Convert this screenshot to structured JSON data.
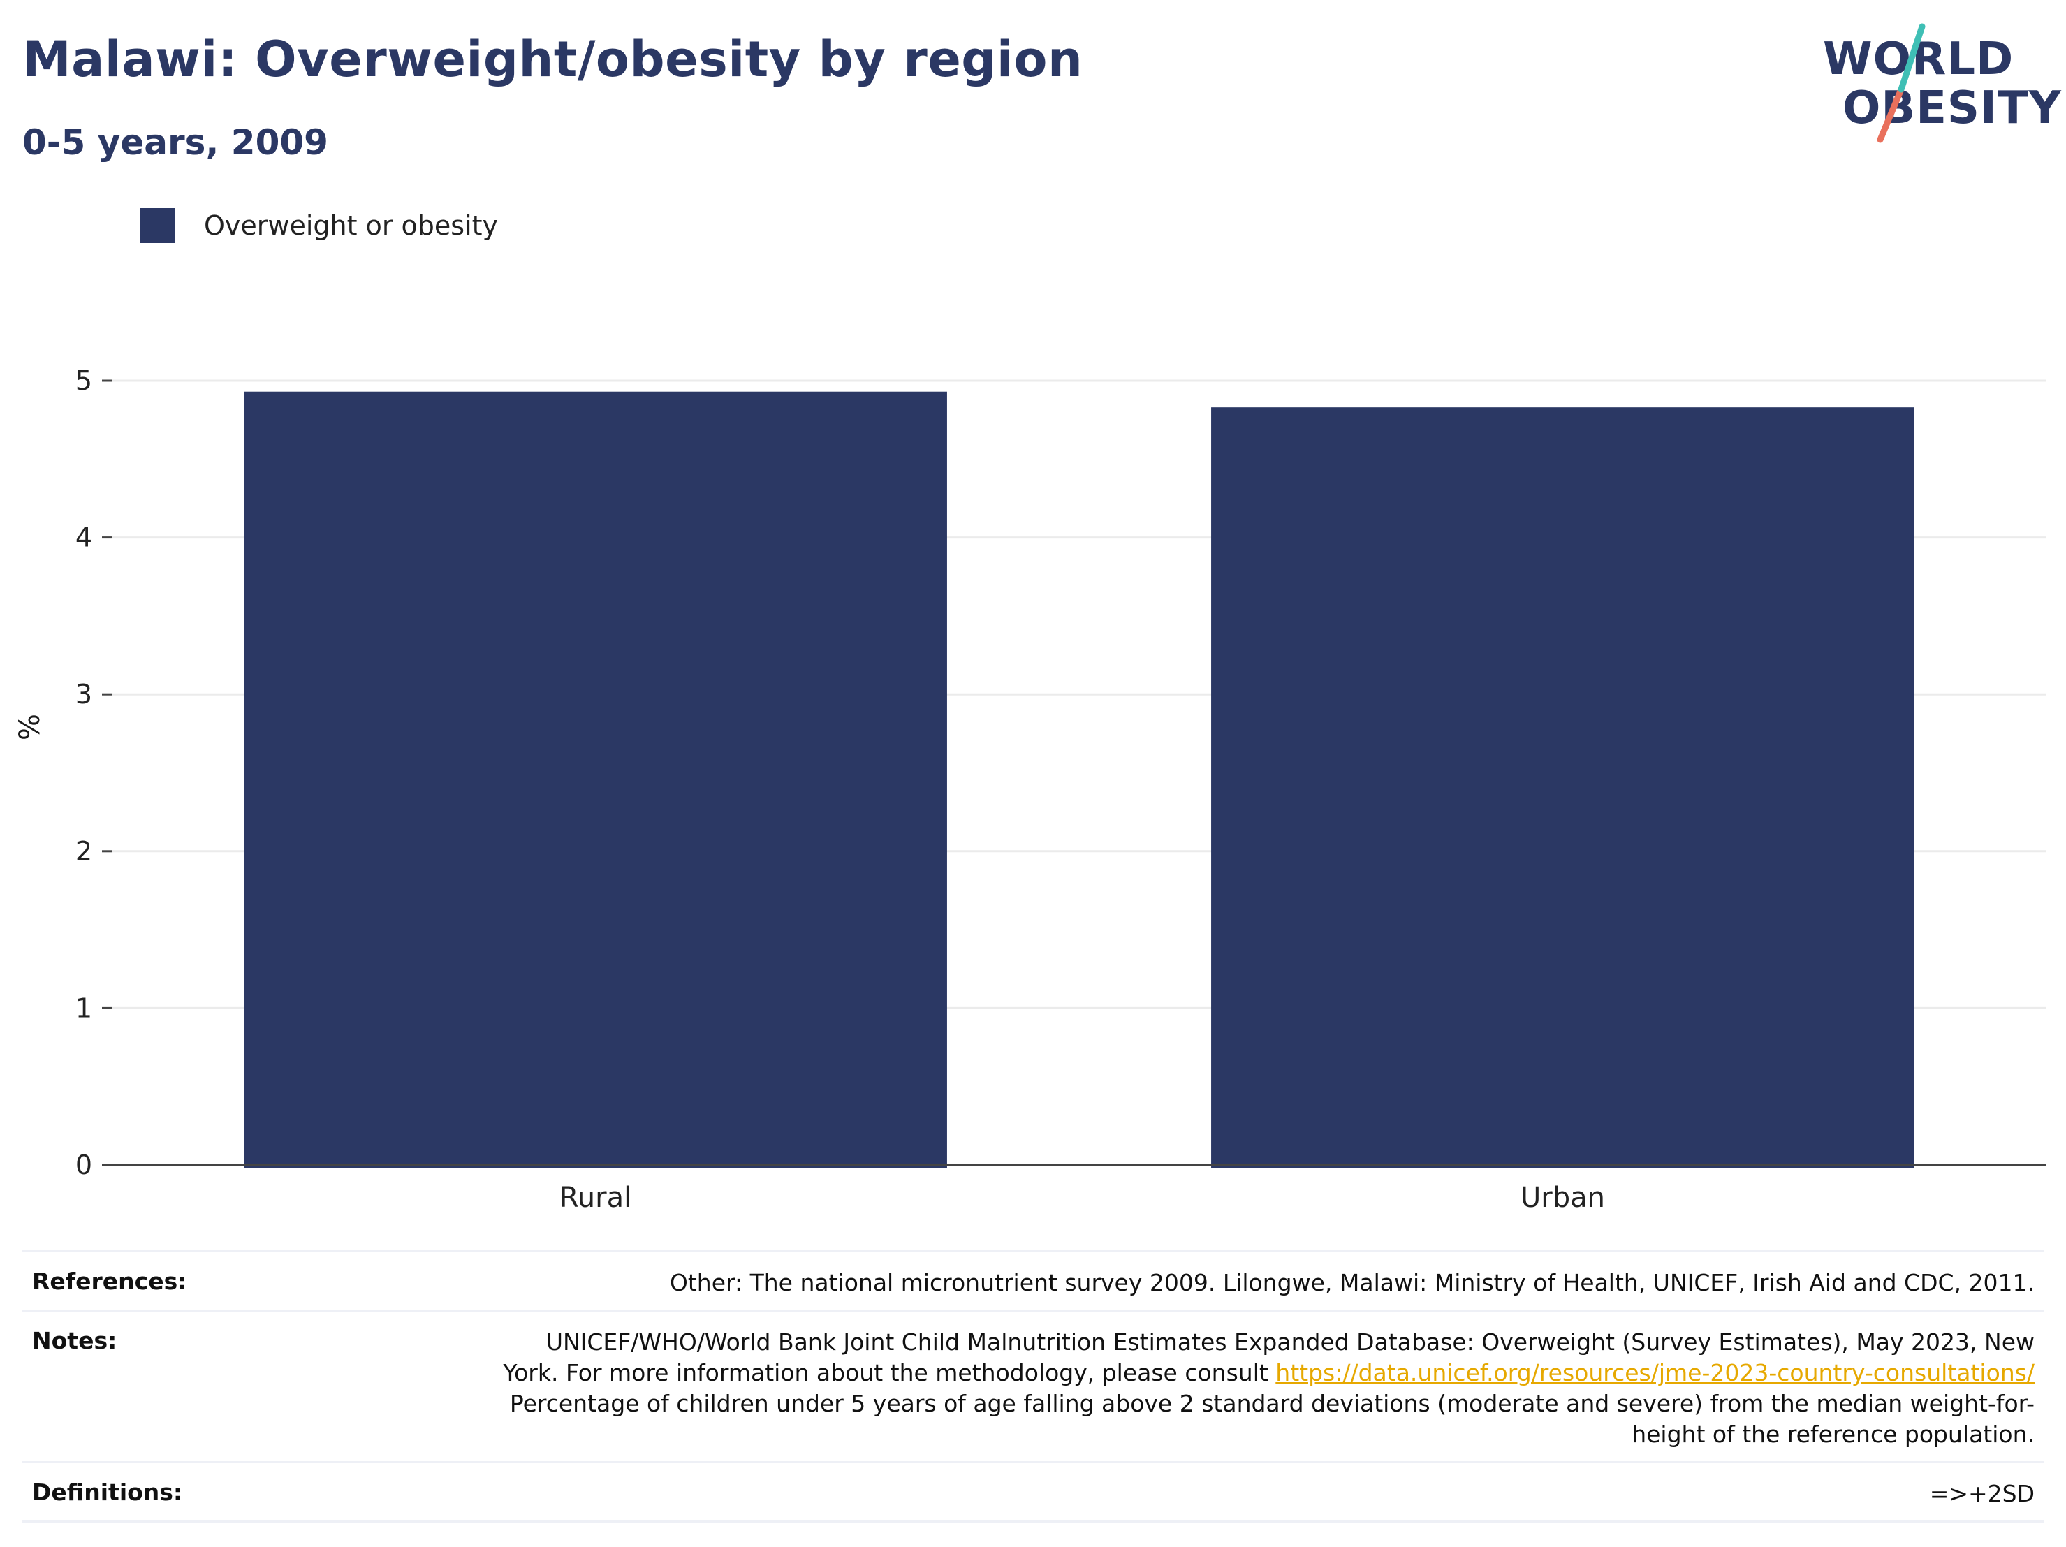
{
  "header": {
    "title": "Malawi: Overweight/obesity by region",
    "subtitle": "0-5 years, 2009"
  },
  "logo": {
    "line1": "WORLD",
    "line2": "OBESITY",
    "accent_colors": [
      "#3fbfb5",
      "#e9705c"
    ]
  },
  "legend": {
    "label": "Overweight or obesity",
    "color": "#2b3864"
  },
  "chart_data": {
    "type": "bar",
    "categories": [
      "Rural",
      "Urban"
    ],
    "series": [
      {
        "name": "Overweight or obesity",
        "values": [
          4.93,
          4.83
        ],
        "color": "#2b3864"
      }
    ],
    "title": "Malawi: Overweight/obesity by region",
    "subtitle": "0-5 years, 2009",
    "xlabel": "",
    "ylabel": "%",
    "ylim": [
      0,
      5
    ],
    "yticks": [
      0,
      1,
      2,
      3,
      4,
      5
    ],
    "grid": true,
    "legend_position": "top-left"
  },
  "footer": {
    "references_key": "References:",
    "references_val": "Other: The national micronutrient survey 2009. Lilongwe, Malawi: Ministry of Health, UNICEF, Irish Aid and CDC, 2011.",
    "notes_key": "Notes:",
    "notes_line1": "UNICEF/WHO/World Bank Joint Child Malnutrition Estimates Expanded Database: Overweight (Survey Estimates), May 2023, New",
    "notes_line2_prefix": "York. For more information about the methodology, please consult ",
    "notes_link": "https://data.unicef.org/resources/jme-2023-country-consultations/",
    "notes_line3": "Percentage of children under 5 years of age falling above 2 standard deviations (moderate and severe) from the median weight-for-",
    "notes_line4": "height of the reference population.",
    "definitions_key": "Definitions:",
    "definitions_val": "=>+2SD"
  }
}
